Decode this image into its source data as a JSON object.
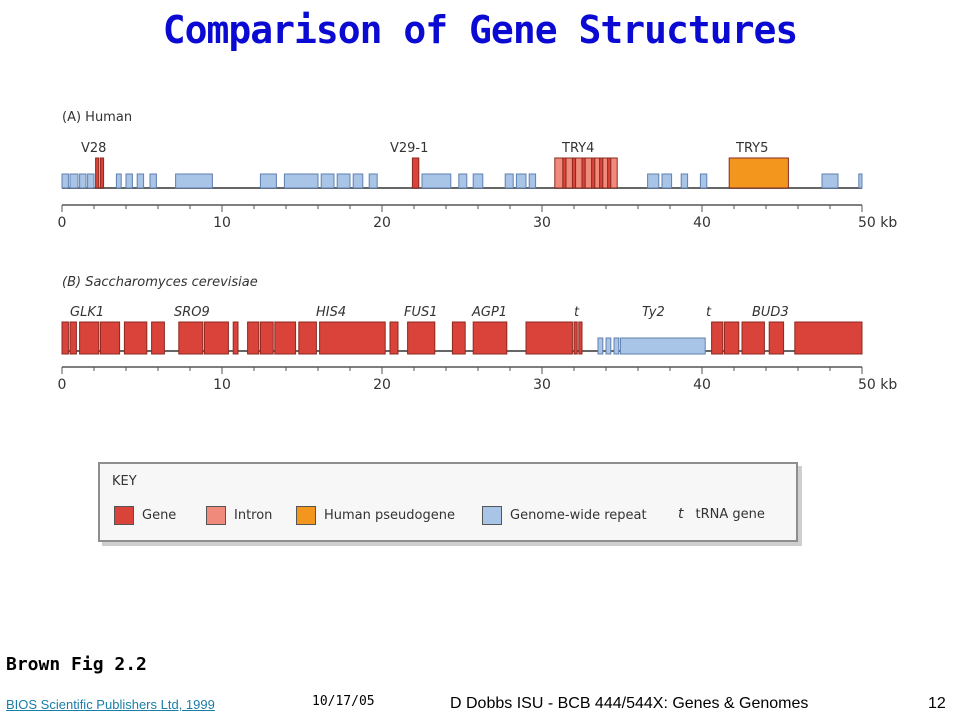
{
  "slide": {
    "title": "Comparison of Gene Structures",
    "caption": "Brown Fig 2.2",
    "footer_link": "BIOS Scientific Publishers Ltd, 1999",
    "footer_date": "10/17/05",
    "footer_course": "D Dobbs ISU - BCB 444/544X: Genes & Genomes",
    "page_number": "12"
  },
  "colors": {
    "gene": "#d9433a",
    "intron": "#f08a7a",
    "pseudogene": "#f2961e",
    "repeat": "#a8c4e6",
    "title": "#0a0ad2",
    "link": "#1a7ea8"
  },
  "figure": {
    "axis_unit": "kb",
    "axis_ticks": [
      "0",
      "10",
      "20",
      "30",
      "40",
      "50 kb"
    ],
    "human": {
      "panel_label": "(A) Human",
      "gene_labels": [
        "V28",
        "V29-1",
        "TRY4",
        "TRY5"
      ],
      "features": [
        {
          "type": "repeat",
          "start": 0.0,
          "end": 0.4
        },
        {
          "type": "repeat",
          "start": 0.5,
          "end": 1.0
        },
        {
          "type": "repeat",
          "start": 1.1,
          "end": 1.5
        },
        {
          "type": "repeat",
          "start": 1.6,
          "end": 2.0
        },
        {
          "type": "gene",
          "start": 2.1,
          "end": 2.3
        },
        {
          "type": "gene",
          "start": 2.4,
          "end": 2.6
        },
        {
          "type": "repeat",
          "start": 3.4,
          "end": 3.7
        },
        {
          "type": "repeat",
          "start": 4.0,
          "end": 4.4
        },
        {
          "type": "repeat",
          "start": 4.7,
          "end": 5.1
        },
        {
          "type": "repeat",
          "start": 5.5,
          "end": 5.9
        },
        {
          "type": "repeat",
          "start": 7.1,
          "end": 9.4
        },
        {
          "type": "repeat",
          "start": 12.4,
          "end": 13.4
        },
        {
          "type": "repeat",
          "start": 13.9,
          "end": 16.0
        },
        {
          "type": "repeat",
          "start": 16.2,
          "end": 17.0
        },
        {
          "type": "repeat",
          "start": 17.2,
          "end": 18.0
        },
        {
          "type": "repeat",
          "start": 18.2,
          "end": 18.8
        },
        {
          "type": "repeat",
          "start": 19.2,
          "end": 19.7
        },
        {
          "type": "gene",
          "start": 21.9,
          "end": 22.3
        },
        {
          "type": "repeat",
          "start": 22.5,
          "end": 24.3
        },
        {
          "type": "repeat",
          "start": 24.8,
          "end": 25.3
        },
        {
          "type": "repeat",
          "start": 25.7,
          "end": 26.3
        },
        {
          "type": "repeat",
          "start": 27.7,
          "end": 28.2
        },
        {
          "type": "repeat",
          "start": 28.4,
          "end": 29.0
        },
        {
          "type": "repeat",
          "start": 29.2,
          "end": 29.6
        },
        {
          "type": "intron",
          "start": 30.8,
          "end": 34.7
        },
        {
          "type": "gene",
          "start": 31.3,
          "end": 31.5
        },
        {
          "type": "gene",
          "start": 31.9,
          "end": 32.1
        },
        {
          "type": "gene",
          "start": 32.5,
          "end": 32.7
        },
        {
          "type": "gene",
          "start": 33.1,
          "end": 33.3
        },
        {
          "type": "gene",
          "start": 33.6,
          "end": 33.8
        },
        {
          "type": "gene",
          "start": 34.1,
          "end": 34.3
        },
        {
          "type": "repeat",
          "start": 36.6,
          "end": 37.3
        },
        {
          "type": "repeat",
          "start": 37.5,
          "end": 38.1
        },
        {
          "type": "repeat",
          "start": 38.7,
          "end": 39.1
        },
        {
          "type": "repeat",
          "start": 39.9,
          "end": 40.3
        },
        {
          "type": "pseudogene",
          "start": 41.7,
          "end": 45.4
        },
        {
          "type": "repeat",
          "start": 47.5,
          "end": 48.5
        },
        {
          "type": "repeat",
          "start": 49.8,
          "end": 50.0
        }
      ]
    },
    "yeast": {
      "panel_label": "(B) Saccharomyces cerevisiae",
      "gene_labels": [
        "GLK1",
        "SRO9",
        "HIS4",
        "FUS1",
        "AGP1",
        "t",
        "Ty2",
        "t",
        "BUD3"
      ],
      "features": [
        {
          "type": "gene",
          "start": 0.0,
          "end": 0.4
        },
        {
          "type": "gene",
          "start": 0.5,
          "end": 0.9
        },
        {
          "type": "gene",
          "start": 1.1,
          "end": 2.3
        },
        {
          "type": "gene",
          "start": 2.4,
          "end": 3.6
        },
        {
          "type": "gene",
          "start": 3.9,
          "end": 5.3
        },
        {
          "type": "gene",
          "start": 5.6,
          "end": 6.4
        },
        {
          "type": "gene",
          "start": 7.3,
          "end": 8.8
        },
        {
          "type": "gene",
          "start": 8.9,
          "end": 10.4
        },
        {
          "type": "gene",
          "start": 10.7,
          "end": 11.0
        },
        {
          "type": "gene",
          "start": 11.6,
          "end": 12.3
        },
        {
          "type": "gene",
          "start": 12.4,
          "end": 13.2
        },
        {
          "type": "gene",
          "start": 13.3,
          "end": 14.6
        },
        {
          "type": "gene",
          "start": 14.8,
          "end": 15.9
        },
        {
          "type": "gene",
          "start": 16.1,
          "end": 20.2
        },
        {
          "type": "gene",
          "start": 20.5,
          "end": 21.0
        },
        {
          "type": "gene",
          "start": 21.6,
          "end": 23.3
        },
        {
          "type": "gene",
          "start": 24.4,
          "end": 25.2
        },
        {
          "type": "gene",
          "start": 25.7,
          "end": 27.8
        },
        {
          "type": "gene",
          "start": 29.0,
          "end": 31.9
        },
        {
          "type": "gene",
          "start": 32.0,
          "end": 32.2
        },
        {
          "type": "gene",
          "start": 32.3,
          "end": 32.5
        },
        {
          "type": "repeat",
          "start": 33.5,
          "end": 33.8
        },
        {
          "type": "repeat",
          "start": 34.0,
          "end": 34.3
        },
        {
          "type": "repeat",
          "start": 34.5,
          "end": 34.8
        },
        {
          "type": "repeat",
          "start": 34.9,
          "end": 40.2
        },
        {
          "type": "gene",
          "start": 40.6,
          "end": 41.3
        },
        {
          "type": "gene",
          "start": 41.4,
          "end": 42.3
        },
        {
          "type": "gene",
          "start": 42.5,
          "end": 43.9
        },
        {
          "type": "gene",
          "start": 44.2,
          "end": 45.1
        },
        {
          "type": "gene",
          "start": 45.8,
          "end": 50.0
        }
      ]
    }
  },
  "key": {
    "title": "KEY",
    "gene": "Gene",
    "intron": "Intron",
    "pseudogene": "Human pseudogene",
    "repeat": "Genome-wide repeat",
    "trna_symbol": "t",
    "trna": "tRNA gene"
  }
}
